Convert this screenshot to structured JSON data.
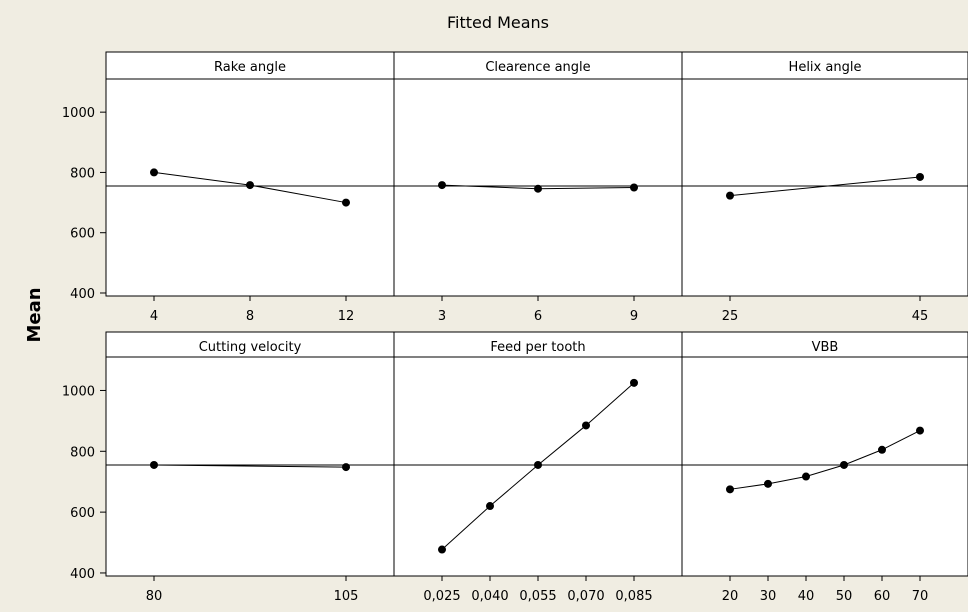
{
  "chart_data": {
    "type": "line",
    "title": "Fitted Means",
    "ylabel": "Mean",
    "ylim": [
      390,
      1110
    ],
    "yticks": [
      400,
      600,
      800,
      1000
    ],
    "reference_line": 755,
    "grid": false,
    "rows": [
      {
        "panels": [
          {
            "name": "Rake angle",
            "x": [
              "4",
              "8",
              "12"
            ],
            "values": [
              800,
              758,
              700
            ]
          },
          {
            "name": "Clearence angle",
            "x": [
              "3",
              "6",
              "9"
            ],
            "values": [
              758,
              746,
              750
            ]
          },
          {
            "name": "Helix angle",
            "x": [
              "25",
              "45"
            ],
            "values": [
              723,
              785
            ]
          }
        ]
      },
      {
        "panels": [
          {
            "name": "Cutting velocity",
            "x": [
              "80",
              "105"
            ],
            "values": [
              755,
              748
            ]
          },
          {
            "name": "Feed per tooth",
            "x": [
              "0,025",
              "0,040",
              "0,055",
              "0,070",
              "0,085"
            ],
            "values": [
              477,
              620,
              755,
              885,
              1025
            ]
          },
          {
            "name": "VBB",
            "x": [
              "20",
              "30",
              "40",
              "50",
              "60",
              "70"
            ],
            "values": [
              675,
              693,
              717,
              755,
              805,
              868
            ]
          }
        ]
      }
    ]
  }
}
